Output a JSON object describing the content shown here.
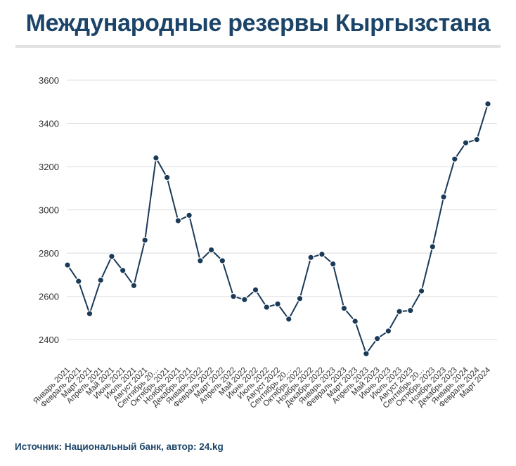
{
  "header": {
    "title": "Международные резервы Кыргызстана"
  },
  "footer": {
    "source": "Источник: Национальный банк, автор: 24.kg"
  },
  "colors": {
    "title": "#1b4468",
    "series": "#1b3a57",
    "grid": "#dddddd",
    "tick": "#333333"
  },
  "chart_data": {
    "type": "line",
    "title": "Международные резервы Кыргызстана",
    "xlabel": "",
    "ylabel": "",
    "ylim": [
      2300,
      3600
    ],
    "yticks": [
      2400,
      2600,
      2800,
      3000,
      3200,
      3400,
      3600
    ],
    "grid": true,
    "categories": [
      "Январь 2021",
      "Февраль 2021",
      "Март 2021",
      "Апрель 2021",
      "Май 2021",
      "Июнь 2021",
      "Июль 2021",
      "Август 2021",
      "Сентябрь 20...",
      "Октябрь 2021",
      "Ноябрь 2021",
      "Декабрь 2021",
      "Январь 2022",
      "Февраль 2022",
      "Март 2022",
      "Апрель 2022",
      "Май 2022",
      "Июнь 2022",
      "Июль 2022",
      "Август 2022",
      "Сентябрь 20...",
      "Октябрь 2022",
      "Ноябрь 2022",
      "Декабрь 2022",
      "Январь 2023",
      "Февраль 2023",
      "Март 2023",
      "Апрель 2023",
      "Май 2023",
      "Июнь 2023",
      "Июль 2023",
      "Август 2023",
      "Сентябрь 20...",
      "Октябрь 2023",
      "Ноябрь 2023",
      "Декабрь 2023",
      "Январь 2024",
      "Февраль 2024",
      "Март 2024"
    ],
    "series": [
      {
        "values": [
          2745,
          2670,
          2520,
          2675,
          2785,
          2720,
          2650,
          2860,
          3240,
          3150,
          2950,
          2975,
          2765,
          2815,
          2765,
          2600,
          2585,
          2630,
          2550,
          2565,
          2495,
          2590,
          2780,
          2795,
          2750,
          2545,
          2485,
          2335,
          2405,
          2440,
          2530,
          2535,
          2625,
          2830,
          3060,
          3235,
          3310,
          3325,
          3490
        ]
      }
    ]
  }
}
